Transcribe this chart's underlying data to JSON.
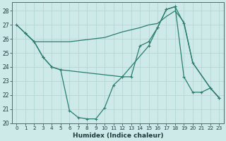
{
  "xlabel": "Humidex (Indice chaleur)",
  "background_color": "#ceeae8",
  "grid_color": "#aed4d0",
  "line_color": "#2a7d6f",
  "xlim": [
    -0.5,
    23.5
  ],
  "ylim": [
    20,
    28.6
  ],
  "yticks": [
    20,
    21,
    22,
    23,
    24,
    25,
    26,
    27,
    28
  ],
  "xticks": [
    0,
    1,
    2,
    3,
    4,
    5,
    6,
    7,
    8,
    9,
    10,
    11,
    12,
    13,
    14,
    15,
    16,
    17,
    18,
    19,
    20,
    21,
    22,
    23
  ],
  "line_zigzag_x": [
    0,
    1,
    2,
    3,
    4,
    5,
    6,
    7,
    8,
    9,
    10,
    11,
    12,
    15,
    16,
    17,
    18,
    19,
    20,
    22,
    23
  ],
  "line_zigzag_y": [
    27.0,
    26.4,
    25.8,
    24.7,
    24.0,
    23.8,
    20.9,
    20.4,
    20.3,
    20.3,
    21.1,
    22.7,
    23.3,
    25.5,
    26.8,
    28.1,
    28.3,
    27.1,
    24.3,
    22.5,
    21.8
  ],
  "line_straight_x": [
    0,
    2,
    3,
    6,
    10,
    11,
    12,
    14,
    15,
    16,
    17,
    18,
    19,
    20,
    22,
    23
  ],
  "line_straight_y": [
    27.0,
    25.8,
    25.8,
    25.8,
    26.1,
    26.3,
    26.5,
    26.8,
    27.0,
    27.1,
    27.6,
    28.0,
    27.2,
    24.3,
    22.5,
    21.8
  ],
  "line_mid_x": [
    1,
    2,
    3,
    4,
    5,
    12,
    13,
    14,
    15,
    16,
    17,
    18,
    19,
    20,
    21,
    22,
    23
  ],
  "line_mid_y": [
    26.4,
    25.8,
    24.7,
    24.0,
    23.8,
    23.3,
    23.3,
    25.5,
    25.8,
    26.8,
    28.1,
    28.3,
    23.3,
    22.2,
    22.2,
    22.5,
    21.8
  ]
}
